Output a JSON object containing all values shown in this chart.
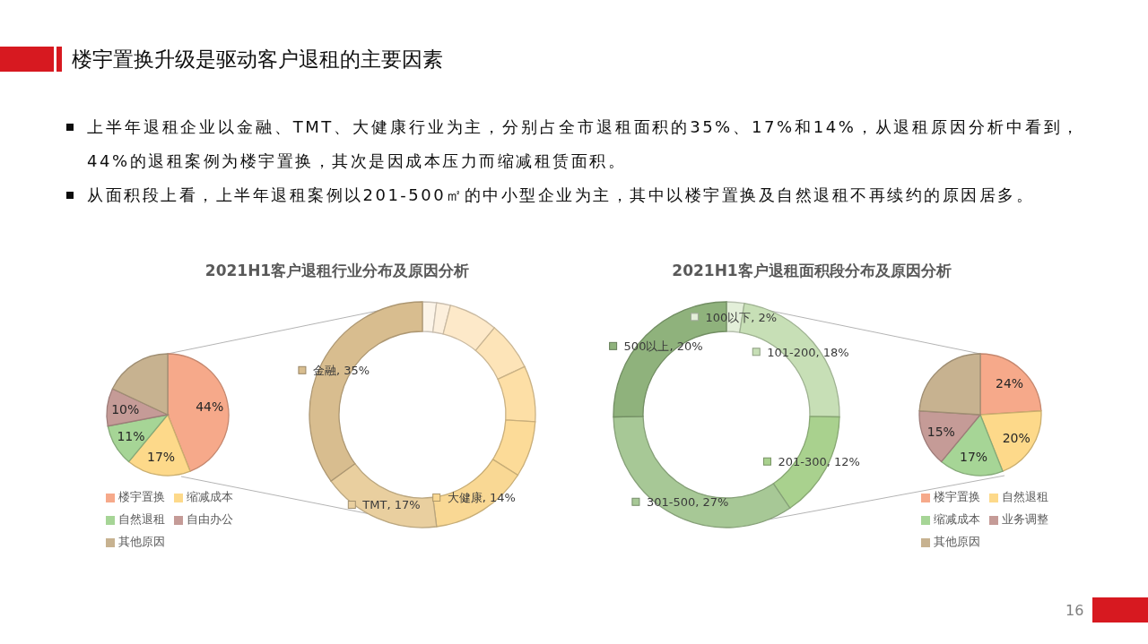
{
  "chart_data": [
    {
      "type": "other",
      "title": "楼宇置换升级是驱动客户退租的主要因素",
      "annotations": [
        "上半年退租企业以金融、TMT、大健康行业为主，分别占全市退租面积的35%、17%和14%，从退租原因分析中看到，44%的退租案例为楼宇置换，其次是因成本压力而缩减租赁面积。",
        "从面积段上看，上半年退租案例以201-500㎡的中小型企业为主，其中以楼宇置换及自然退租不再续约的原因居多。",
        "16"
      ]
    },
    {
      "type": "pie",
      "categories": [
        "楼宇置换",
        "缩减成本",
        "自然退租",
        "自由办公",
        "其他原因"
      ],
      "values": [
        44,
        17,
        11,
        10,
        18
      ],
      "colors": [
        "#f6a98a",
        "#fdd98a",
        "#a6d596",
        "#c59b97",
        "#c7b290"
      ],
      "value_labels": [
        "44%",
        "17%",
        "11%",
        "10%",
        null
      ],
      "legend": "bottom"
    },
    {
      "type": "donut",
      "title": "2021H1客户退租行业分布及原因分析",
      "categories": [
        null,
        null,
        null,
        null,
        null,
        null,
        "大健康",
        "TMT",
        "金融"
      ],
      "values": [
        2,
        2,
        7,
        7,
        8,
        8,
        14,
        17,
        35
      ],
      "colors": [
        "#fcf4e8",
        "#fcefdc",
        "#fde9c9",
        "#fde4b8",
        "#fddfa6",
        "#fcdb98",
        "#f9d894",
        "#e9cf9f",
        "#d8bd8f"
      ],
      "value_labels": [
        null,
        null,
        null,
        null,
        null,
        null,
        "14%",
        "17%",
        "35%"
      ],
      "legend": "center"
    },
    {
      "type": "donut",
      "title": "2021H1客户退租面积段分布及原因分析",
      "categories": [
        "100以下",
        "101-200",
        "201-300",
        "301-500",
        "500以上"
      ],
      "values": [
        2,
        18,
        12,
        27,
        20
      ],
      "colors": [
        "#e3efd9",
        "#c7dfb6",
        "#a9d18e",
        "#a7c896",
        "#8fb27c"
      ],
      "value_labels": [
        "2%",
        "18%",
        "12%",
        "27%",
        "20%"
      ],
      "legend": "center"
    },
    {
      "type": "pie",
      "categories": [
        "楼宇置换",
        "自然退租",
        "缩减成本",
        "业务调整",
        "其他原因"
      ],
      "values": [
        24,
        20,
        17,
        15,
        24
      ],
      "colors": [
        "#f6a98a",
        "#fdd98a",
        "#a6d596",
        "#c59b97",
        "#c7b290"
      ],
      "value_labels": [
        "24%",
        "20%",
        "17%",
        "15%",
        null
      ],
      "legend": "bottom"
    }
  ]
}
